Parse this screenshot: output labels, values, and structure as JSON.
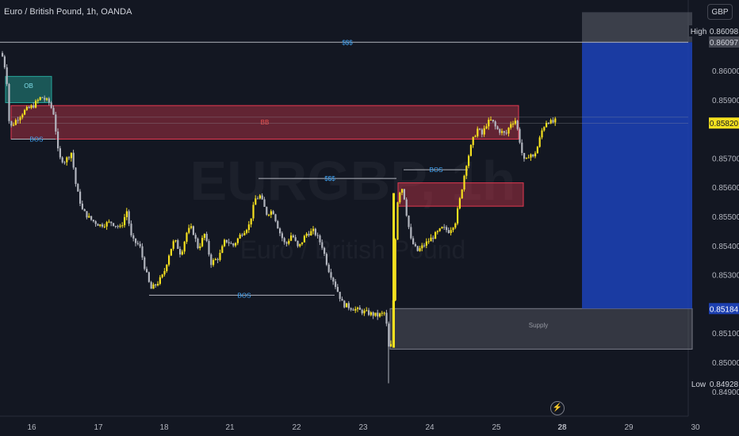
{
  "header": {
    "symbol_title": "Euro / British Pound, 1h, OANDA"
  },
  "currency_button": {
    "label": "GBP"
  },
  "watermark": {
    "symbol": "EURGBP, 1h",
    "name": "Euro / British Pound"
  },
  "chart_data": {
    "type": "candlestick",
    "title": "Euro / British Pound, 1h, OANDA",
    "x_tick_labels": [
      "16",
      "17",
      "18",
      "21",
      "22",
      "23",
      "24",
      "25",
      "28",
      "29",
      "30"
    ],
    "y_tick_labels": [
      "0.86000",
      "0.85900",
      "0.85700",
      "0.85600",
      "0.85500",
      "0.85400",
      "0.85300",
      "0.85100",
      "0.85000",
      "0.84900"
    ],
    "ylim": [
      0.8488,
      0.8622
    ],
    "price_badges": [
      {
        "label": "High",
        "value": "0.86098"
      },
      {
        "value": "0.86097"
      },
      {
        "value": "0.85820"
      },
      {
        "value": "0.85184"
      },
      {
        "label": "Low",
        "value": "0.84928"
      }
    ],
    "annotations": [
      {
        "text": "$$$",
        "price": 0.86097,
        "kind": "liquidity-line"
      },
      {
        "text": "OB",
        "kind": "order-block"
      },
      {
        "text": "BB",
        "kind": "breaker-block"
      },
      {
        "text": "BOS",
        "price": 0.85765,
        "kind": "break-of-structure"
      },
      {
        "text": "BOS",
        "price": 0.8523,
        "kind": "break-of-structure"
      },
      {
        "text": "$$$",
        "price": 0.8563,
        "kind": "liquidity-line"
      },
      {
        "text": "BOS",
        "price": 0.8566,
        "kind": "break-of-structure"
      },
      {
        "text": "Supply",
        "kind": "zone"
      }
    ],
    "colors": {
      "up_candle": "#f5e01f",
      "down_candle": "#b2b5be",
      "order_block": "#26a69a",
      "breaker_block": "#e53950",
      "target_zone": "#1c3fb0",
      "stop_zone": "#5d606b",
      "background": "#131722"
    }
  }
}
